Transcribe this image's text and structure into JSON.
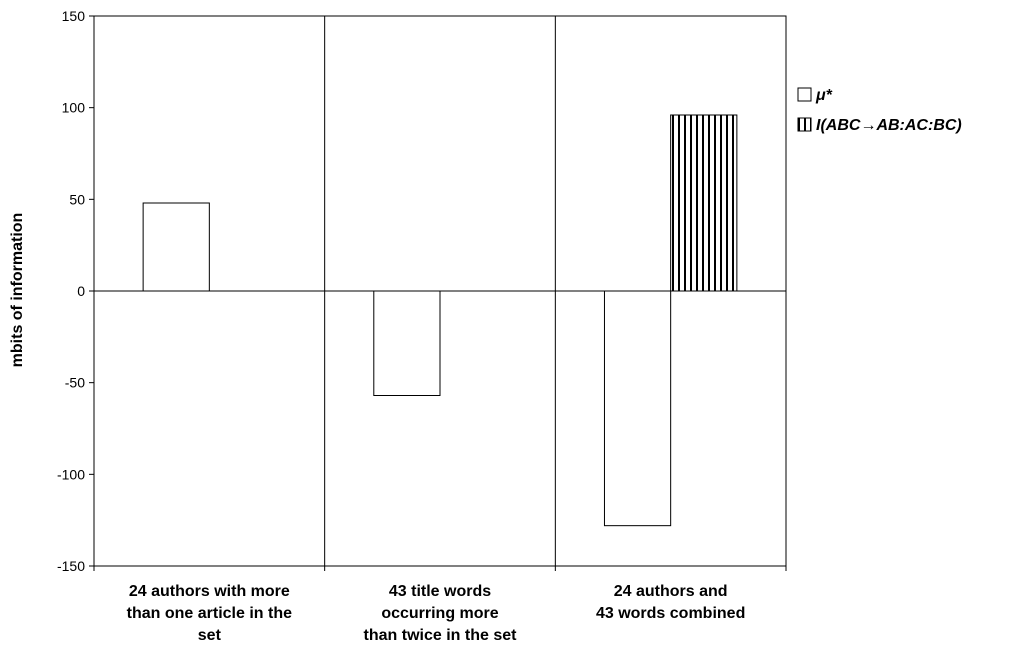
{
  "chart_data": {
    "type": "bar",
    "categories": [
      [
        "24 authors with more",
        "than one article in the",
        "set"
      ],
      [
        "43 title words",
        "occurring more",
        "than twice in the set"
      ],
      [
        "24 authors and",
        "43 words combined"
      ]
    ],
    "series": [
      {
        "name": "μ*",
        "pattern": "blank",
        "values": [
          48,
          -57,
          -128
        ]
      },
      {
        "name": "I(ABC→AB:AC:BC)",
        "pattern": "vertical-stripes",
        "values": [
          null,
          null,
          96
        ]
      }
    ],
    "ylabel": "mbits of information",
    "ylim": [
      -150,
      150
    ],
    "yticks": [
      -150,
      -100,
      -50,
      0,
      50,
      100,
      150
    ],
    "grid": "vertical separators between categories",
    "legend_position": "right",
    "colors": {
      "bar_fill": "#ffffff",
      "bar_stroke": "#000000",
      "stripe": "#000000"
    }
  }
}
